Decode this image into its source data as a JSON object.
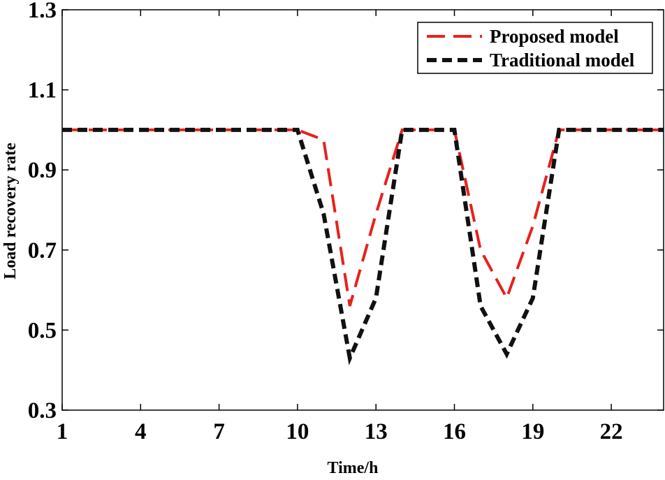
{
  "chart_data": {
    "type": "line",
    "title": "",
    "xlabel": "Time/h",
    "ylabel": "Load recovery rate",
    "xlim": [
      1,
      24
    ],
    "ylim": [
      0.3,
      1.3
    ],
    "xticks": [
      1,
      4,
      7,
      10,
      13,
      16,
      19,
      22
    ],
    "xtick_labels": [
      "1",
      "4",
      "7",
      "10",
      "13",
      "16",
      "19",
      "22"
    ],
    "yticks": [
      0.3,
      0.5,
      0.7,
      0.9,
      1.1,
      1.3
    ],
    "ytick_labels": [
      "0.3",
      "0.5",
      "0.7",
      "0.9",
      "1.1",
      "1.3"
    ],
    "grid": false,
    "legend_position": "top-right",
    "x": [
      1,
      2,
      3,
      4,
      5,
      6,
      7,
      8,
      9,
      10,
      11,
      12,
      13,
      14,
      15,
      16,
      17,
      18,
      19,
      20,
      21,
      22,
      23,
      24
    ],
    "series": [
      {
        "name": "Proposed model",
        "color": "#e8211c",
        "dash": "long-dash",
        "values": [
          1.0,
          1.0,
          1.0,
          1.0,
          1.0,
          1.0,
          1.0,
          1.0,
          1.0,
          1.0,
          0.975,
          0.56,
          0.79,
          1.0,
          1.0,
          1.0,
          0.7,
          0.58,
          0.76,
          1.0,
          1.0,
          1.0,
          1.0,
          1.0
        ]
      },
      {
        "name": "Traditional model",
        "color": "#111111",
        "dash": "short-dash",
        "values": [
          1.0,
          1.0,
          1.0,
          1.0,
          1.0,
          1.0,
          1.0,
          1.0,
          1.0,
          1.0,
          0.79,
          0.43,
          0.58,
          1.0,
          1.0,
          1.0,
          0.56,
          0.44,
          0.58,
          1.0,
          1.0,
          1.0,
          1.0,
          1.0
        ]
      }
    ]
  }
}
